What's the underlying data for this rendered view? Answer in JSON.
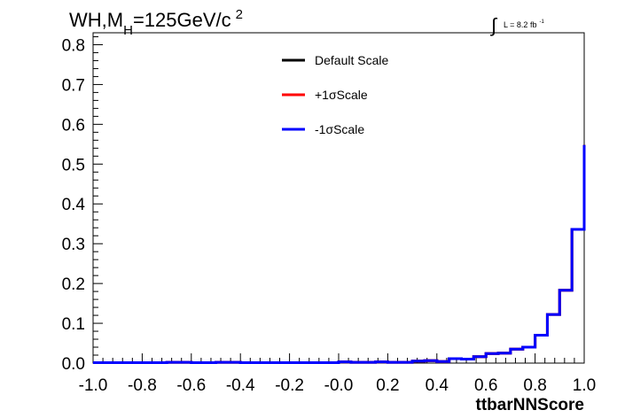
{
  "chart_data": {
    "type": "line",
    "style": "step-histogram",
    "title": {
      "main_prefix": "WH,M",
      "main_subscript": "H",
      "main_suffix": "=125GeV/c",
      "main_superscript": "2"
    },
    "luminosity": {
      "integral_symbol": "∫",
      "text": "L = 8.2 fb",
      "superscript": "-1"
    },
    "xlabel": "ttbarNNScore",
    "ylabel": "",
    "xlim": [
      -1.0,
      1.0
    ],
    "ylim": [
      0.0,
      0.83
    ],
    "xticks": [
      "-1.0",
      "-0.8",
      "-0.6",
      "-0.4",
      "-0.2",
      "-0.0",
      "0.2",
      "0.4",
      "0.6",
      "0.8",
      "1.0"
    ],
    "yticks": [
      "0.0",
      "0.1",
      "0.2",
      "0.3",
      "0.4",
      "0.5",
      "0.6",
      "0.7",
      "0.8"
    ],
    "bin_edges": [
      -1.0,
      -0.95,
      -0.9,
      -0.85,
      -0.8,
      -0.75,
      -0.7,
      -0.65,
      -0.6,
      -0.55,
      -0.5,
      -0.45,
      -0.4,
      -0.35,
      -0.3,
      -0.25,
      -0.2,
      -0.15,
      -0.1,
      -0.05,
      0.0,
      0.05,
      0.1,
      0.15,
      0.2,
      0.25,
      0.3,
      0.35,
      0.4,
      0.45,
      0.5,
      0.55,
      0.6,
      0.65,
      0.7,
      0.75,
      0.8,
      0.85,
      0.9,
      0.95,
      1.0
    ],
    "legend_position": "top-center",
    "grid": false,
    "series": [
      {
        "name": "Default Scale",
        "color": "#000000",
        "values": [
          0.001,
          0.001,
          0.001,
          0.001,
          0.001,
          0.001,
          0.002,
          0.002,
          0.001,
          0.001,
          0.002,
          0.002,
          0.001,
          0.001,
          0.001,
          0.001,
          0.001,
          0.001,
          0.001,
          0.001,
          0.003,
          0.002,
          0.002,
          0.003,
          0.002,
          0.002,
          0.005,
          0.006,
          0.004,
          0.011,
          0.01,
          0.016,
          0.024,
          0.025,
          0.035,
          0.04,
          0.07,
          0.122,
          0.183,
          0.336,
          0.548
        ]
      },
      {
        "name": "+1σScale",
        "color": "#ff0000",
        "values": [
          0.001,
          0.001,
          0.001,
          0.001,
          0.001,
          0.001,
          0.002,
          0.002,
          0.001,
          0.001,
          0.002,
          0.002,
          0.001,
          0.001,
          0.001,
          0.001,
          0.001,
          0.001,
          0.001,
          0.001,
          0.003,
          0.002,
          0.002,
          0.003,
          0.002,
          0.002,
          0.005,
          0.006,
          0.004,
          0.011,
          0.01,
          0.016,
          0.024,
          0.025,
          0.035,
          0.04,
          0.07,
          0.122,
          0.183,
          0.336,
          0.548
        ]
      },
      {
        "name": "-1σScale",
        "color": "#0000ff",
        "values": [
          0.001,
          0.001,
          0.001,
          0.001,
          0.001,
          0.001,
          0.002,
          0.002,
          0.001,
          0.001,
          0.002,
          0.002,
          0.001,
          0.001,
          0.001,
          0.001,
          0.001,
          0.001,
          0.001,
          0.001,
          0.003,
          0.002,
          0.002,
          0.003,
          0.002,
          0.002,
          0.005,
          0.006,
          0.004,
          0.011,
          0.01,
          0.016,
          0.024,
          0.025,
          0.035,
          0.04,
          0.07,
          0.122,
          0.183,
          0.336,
          0.548
        ]
      }
    ]
  }
}
